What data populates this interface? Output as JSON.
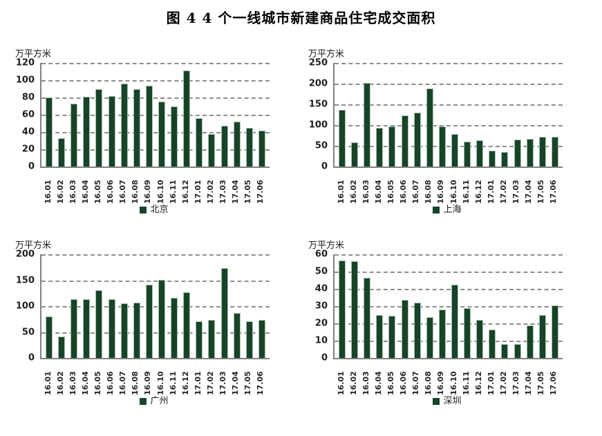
{
  "title": "图 4  4 个一线城市新建商品住宅成交面积",
  "colors": {
    "bar_fill": "#17432A",
    "bar_border": "#A7C2A9",
    "gridline": "#8C8C8C",
    "axis": "#808080"
  },
  "chart_data": [
    {
      "type": "bar",
      "city": "北京",
      "ylabel": "万平方米",
      "ylim": [
        0,
        120
      ],
      "ytick_step": 20,
      "grid": "horizontal-dashed",
      "legend_position": "bottom",
      "categories": [
        "16.01",
        "16.02",
        "16.03",
        "16.04",
        "16.05",
        "16.06",
        "16.07",
        "16.08",
        "16.09",
        "16.10",
        "16.11",
        "16.12",
        "17.01",
        "17.02",
        "17.03",
        "17.04",
        "17.05",
        "17.06"
      ],
      "values": [
        80,
        33,
        73,
        81,
        90,
        82,
        96,
        90,
        94,
        75,
        70,
        111,
        56,
        38,
        47,
        52,
        45,
        42
      ]
    },
    {
      "type": "bar",
      "city": "上海",
      "ylabel": "万平方米",
      "ylim": [
        0,
        250
      ],
      "ytick_step": 50,
      "grid": "horizontal-dashed",
      "legend_position": "bottom",
      "categories": [
        "16.01",
        "16.02",
        "16.03",
        "16.04",
        "16.05",
        "16.06",
        "16.07",
        "16.08",
        "16.09",
        "16.10",
        "16.11",
        "16.12",
        "17.01",
        "17.02",
        "17.03",
        "17.04",
        "17.05",
        "17.06"
      ],
      "values": [
        137,
        59,
        201,
        93,
        96,
        123,
        130,
        188,
        96,
        79,
        60,
        64,
        38,
        35,
        65,
        66,
        71,
        71
      ]
    },
    {
      "type": "bar",
      "city": "广州",
      "ylabel": "万平方米",
      "ylim": [
        0,
        200
      ],
      "ytick_step": 50,
      "grid": "horizontal-dashed",
      "legend_position": "bottom",
      "categories": [
        "16.01",
        "16.02",
        "16.03",
        "16.04",
        "16.05",
        "16.06",
        "16.07",
        "16.08",
        "16.09",
        "16.10",
        "16.11",
        "16.12",
        "17.01",
        "17.02",
        "17.03",
        "17.04",
        "17.05",
        "17.06"
      ],
      "values": [
        80,
        42,
        113,
        114,
        131,
        114,
        106,
        107,
        142,
        151,
        116,
        127,
        71,
        73,
        173,
        87,
        71,
        73
      ]
    },
    {
      "type": "bar",
      "city": "深圳",
      "ylabel": "万平方米",
      "ylim": [
        0,
        60
      ],
      "ytick_step": 10,
      "grid": "horizontal-dashed",
      "legend_position": "bottom",
      "categories": [
        "16.01",
        "16.02",
        "16.03",
        "16.04",
        "16.05",
        "16.06",
        "16.07",
        "16.08",
        "16.09",
        "16.10",
        "16.11",
        "16.12",
        "17.01",
        "17.02",
        "17.03",
        "17.04",
        "17.05",
        "17.06"
      ],
      "values": [
        56.5,
        56,
        46.5,
        25,
        24.5,
        33.5,
        32,
        23.5,
        28,
        42.5,
        29,
        22,
        16.5,
        8,
        8,
        19,
        25,
        30.5
      ]
    }
  ]
}
